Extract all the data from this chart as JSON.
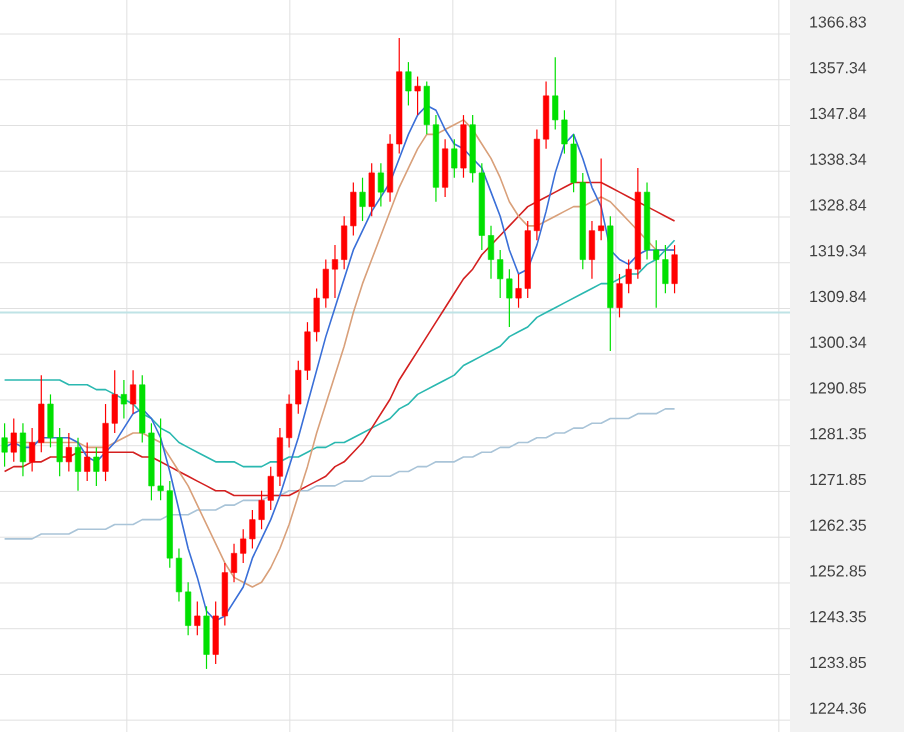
{
  "chart_data": {
    "type": "candlestick",
    "categories": [
      null,
      null,
      null,
      null,
      null,
      null,
      null,
      null,
      null,
      null,
      null,
      null,
      null,
      null,
      null,
      null,
      null,
      null,
      null,
      null,
      null,
      null,
      null,
      null,
      null,
      null,
      null,
      null,
      null,
      null,
      null,
      null,
      null,
      null,
      null,
      null,
      null,
      null,
      null,
      null,
      null,
      null,
      null,
      null,
      null,
      null,
      null,
      null,
      null,
      null,
      null,
      null,
      null,
      null,
      null,
      null,
      null,
      null,
      null,
      null,
      null,
      null,
      null,
      null,
      null,
      null,
      null,
      null,
      null,
      null,
      null,
      null,
      null,
      null
    ],
    "ohlc": [
      [
        1283,
        1286,
        1277,
        1280
      ],
      [
        1280,
        1287,
        1278,
        1284
      ],
      [
        1284,
        1286,
        1275,
        1278
      ],
      [
        1278,
        1285,
        1276,
        1282
      ],
      [
        1282,
        1296,
        1280,
        1290
      ],
      [
        1290,
        1292,
        1281,
        1283
      ],
      [
        1283,
        1285,
        1275,
        1278
      ],
      [
        1278,
        1284,
        1276,
        1281
      ],
      [
        1281,
        1283,
        1272,
        1276
      ],
      [
        1276,
        1282,
        1274,
        1279
      ],
      [
        1279,
        1281,
        1273,
        1276
      ],
      [
        1276,
        1290,
        1274,
        1286
      ],
      [
        1286,
        1297,
        1284,
        1292
      ],
      [
        1292,
        1295,
        1287,
        1290
      ],
      [
        1290,
        1297,
        1288,
        1294
      ],
      [
        1294,
        1296,
        1282,
        1284
      ],
      [
        1284,
        1286,
        1270,
        1273
      ],
      [
        1273,
        1287,
        1270,
        1272
      ],
      [
        1272,
        1274,
        1256,
        1258
      ],
      [
        1258,
        1260,
        1249,
        1251
      ],
      [
        1251,
        1253,
        1242,
        1244
      ],
      [
        1244,
        1249,
        1242,
        1246
      ],
      [
        1246,
        1248,
        1235,
        1238
      ],
      [
        1238,
        1249,
        1236,
        1246
      ],
      [
        1246,
        1257,
        1244,
        1255
      ],
      [
        1255,
        1261,
        1253,
        1259
      ],
      [
        1259,
        1264,
        1257,
        1262
      ],
      [
        1262,
        1268,
        1260,
        1266
      ],
      [
        1266,
        1272,
        1264,
        1270
      ],
      [
        1270,
        1277,
        1268,
        1275
      ],
      [
        1275,
        1285,
        1273,
        1283
      ],
      [
        1283,
        1292,
        1281,
        1290
      ],
      [
        1290,
        1299,
        1288,
        1297
      ],
      [
        1297,
        1307,
        1295,
        1305
      ],
      [
        1305,
        1314,
        1303,
        1312
      ],
      [
        1312,
        1320,
        1310,
        1318
      ],
      [
        1318,
        1323,
        1312,
        1320
      ],
      [
        1320,
        1329,
        1318,
        1327
      ],
      [
        1327,
        1336,
        1325,
        1334
      ],
      [
        1334,
        1337,
        1328,
        1331
      ],
      [
        1331,
        1340,
        1329,
        1338
      ],
      [
        1338,
        1340,
        1331,
        1334
      ],
      [
        1334,
        1346,
        1332,
        1344
      ],
      [
        1344,
        1366,
        1342,
        1359
      ],
      [
        1359,
        1361,
        1352,
        1355
      ],
      [
        1355,
        1358,
        1350,
        1356
      ],
      [
        1356,
        1357,
        1346,
        1348
      ],
      [
        1348,
        1350,
        1332,
        1335
      ],
      [
        1335,
        1345,
        1333,
        1343
      ],
      [
        1343,
        1345,
        1337,
        1339
      ],
      [
        1339,
        1350,
        1337,
        1348
      ],
      [
        1348,
        1350,
        1336,
        1338
      ],
      [
        1338,
        1340,
        1322,
        1325
      ],
      [
        1325,
        1327,
        1316,
        1320
      ],
      [
        1320,
        1322,
        1312,
        1316
      ],
      [
        1316,
        1318,
        1306,
        1312
      ],
      [
        1312,
        1317,
        1310,
        1314
      ],
      [
        1314,
        1328,
        1312,
        1326
      ],
      [
        1326,
        1347,
        1324,
        1345
      ],
      [
        1345,
        1357,
        1343,
        1354
      ],
      [
        1354,
        1362,
        1347,
        1349
      ],
      [
        1349,
        1351,
        1342,
        1344
      ],
      [
        1344,
        1346,
        1334,
        1336
      ],
      [
        1336,
        1338,
        1318,
        1320
      ],
      [
        1320,
        1328,
        1316,
        1326
      ],
      [
        1326,
        1341,
        1324,
        1327
      ],
      [
        1327,
        1329,
        1301,
        1310
      ],
      [
        1310,
        1317,
        1308,
        1315
      ],
      [
        1315,
        1320,
        1313,
        1318
      ],
      [
        1318,
        1339,
        1316,
        1334
      ],
      [
        1334,
        1336,
        1320,
        1322
      ],
      [
        1322,
        1324,
        1310,
        1320
      ],
      [
        1320,
        1323,
        1313,
        1315
      ],
      [
        1315,
        1323,
        1313,
        1321
      ]
    ],
    "colors": [
      "#00e000",
      "#ff0000",
      "#00e000",
      "#ff0000",
      "#ff0000",
      "#00e000",
      "#00e000",
      "#ff0000",
      "#00e000",
      "#ff0000",
      "#00e000",
      "#ff0000",
      "#ff0000",
      "#00e000",
      "#ff0000",
      "#00e000",
      "#00e000",
      "#00e000",
      "#00e000",
      "#00e000",
      "#00e000",
      "#ff0000",
      "#00e000",
      "#ff0000",
      "#ff0000",
      "#ff0000",
      "#ff0000",
      "#ff0000",
      "#ff0000",
      "#ff0000",
      "#ff0000",
      "#ff0000",
      "#ff0000",
      "#ff0000",
      "#ff0000",
      "#ff0000",
      "#ff0000",
      "#ff0000",
      "#ff0000",
      "#00e000",
      "#ff0000",
      "#00e000",
      "#ff0000",
      "#ff0000",
      "#00e000",
      "#ff0000",
      "#00e000",
      "#00e000",
      "#ff0000",
      "#00e000",
      "#ff0000",
      "#00e000",
      "#00e000",
      "#00e000",
      "#00e000",
      "#00e000",
      "#ff0000",
      "#ff0000",
      "#ff0000",
      "#ff0000",
      "#00e000",
      "#00e000",
      "#00e000",
      "#00e000",
      "#ff0000",
      "#ff0000",
      "#00e000",
      "#ff0000",
      "#ff0000",
      "#ff0000",
      "#00e000",
      "#00e000",
      "#00e000",
      "#ff0000"
    ],
    "series": [
      {
        "type": "line",
        "color": "#a9c4d8",
        "values": [
          1262,
          1262,
          1262,
          1262,
          1263,
          1263,
          1263,
          1263,
          1264,
          1264,
          1264,
          1264,
          1265,
          1265,
          1265,
          1266,
          1266,
          1266,
          1267,
          1267,
          1267,
          1268,
          1268,
          1268,
          1269,
          1269,
          1270,
          1270,
          1270,
          1271,
          1271,
          1272,
          1272,
          1272,
          1273,
          1273,
          1273,
          1274,
          1274,
          1274,
          1275,
          1275,
          1275,
          1276,
          1276,
          1277,
          1277,
          1278,
          1278,
          1278,
          1279,
          1279,
          1280,
          1280,
          1281,
          1281,
          1282,
          1282,
          1283,
          1283,
          1284,
          1284,
          1285,
          1285,
          1286,
          1286,
          1287,
          1287,
          1287,
          1288,
          1288,
          1288,
          1289,
          1289
        ]
      },
      {
        "type": "line",
        "color": "#2ab8b0",
        "values": [
          1295,
          1295,
          1295,
          1295,
          1295,
          1295,
          1295,
          1294,
          1294,
          1294,
          1293,
          1293,
          1292,
          1291,
          1290,
          1288,
          1287,
          1285,
          1284,
          1282,
          1281,
          1280,
          1279,
          1278,
          1278,
          1278,
          1277,
          1277,
          1277,
          1278,
          1278,
          1279,
          1279,
          1280,
          1281,
          1281,
          1282,
          1282,
          1283,
          1284,
          1285,
          1286,
          1287,
          1289,
          1290,
          1292,
          1293,
          1294,
          1295,
          1296,
          1298,
          1299,
          1300,
          1301,
          1302,
          1304,
          1305,
          1306,
          1308,
          1309,
          1310,
          1311,
          1312,
          1313,
          1314,
          1315,
          1315,
          1316,
          1317,
          1317,
          1319,
          1320,
          1322,
          1324
        ]
      },
      {
        "type": "line",
        "color": "#d42020",
        "values": [
          1276,
          1277,
          1277,
          1278,
          1278,
          1279,
          1279,
          1279,
          1280,
          1280,
          1280,
          1280,
          1280,
          1280,
          1280,
          1279,
          1279,
          1278,
          1277,
          1276,
          1275,
          1274,
          1273,
          1272,
          1272,
          1271,
          1271,
          1271,
          1271,
          1271,
          1271,
          1271,
          1272,
          1273,
          1274,
          1275,
          1277,
          1278,
          1280,
          1282,
          1285,
          1288,
          1291,
          1295,
          1298,
          1301,
          1304,
          1307,
          1310,
          1313,
          1316,
          1318,
          1321,
          1323,
          1325,
          1327,
          1329,
          1331,
          1332,
          1333,
          1334,
          1335,
          1336,
          1336,
          1336,
          1336,
          1335,
          1334,
          1333,
          1332,
          1331,
          1330,
          1329,
          1328
        ]
      },
      {
        "type": "line",
        "color": "#d9a07a",
        "values": [
          1282,
          1282,
          1282,
          1282,
          1282,
          1282,
          1282,
          1282,
          1282,
          1281,
          1281,
          1281,
          1282,
          1283,
          1284,
          1284,
          1283,
          1282,
          1279,
          1276,
          1273,
          1269,
          1265,
          1261,
          1257,
          1254,
          1253,
          1252,
          1253,
          1256,
          1260,
          1265,
          1271,
          1277,
          1284,
          1290,
          1296,
          1302,
          1309,
          1315,
          1320,
          1325,
          1330,
          1335,
          1339,
          1343,
          1346,
          1346,
          1347,
          1348,
          1349,
          1347,
          1344,
          1341,
          1337,
          1332,
          1329,
          1327,
          1327,
          1328,
          1329,
          1330,
          1331,
          1331,
          1332,
          1333,
          1332,
          1330,
          1328,
          1326,
          1324,
          1322,
          1322,
          1322
        ]
      },
      {
        "type": "line",
        "color": "#3a6fd8",
        "values": [
          1281,
          1282,
          1281,
          1281,
          1283,
          1283,
          1283,
          1283,
          1282,
          1279,
          1278,
          1280,
          1282,
          1285,
          1288,
          1289,
          1287,
          1283,
          1276,
          1268,
          1260,
          1254,
          1247,
          1245,
          1246,
          1249,
          1252,
          1258,
          1262,
          1266,
          1271,
          1277,
          1283,
          1290,
          1297,
          1304,
          1310,
          1316,
          1322,
          1326,
          1330,
          1333,
          1336,
          1341,
          1346,
          1350,
          1352,
          1351,
          1347,
          1344,
          1343,
          1341,
          1339,
          1334,
          1329,
          1322,
          1317,
          1318,
          1323,
          1330,
          1338,
          1344,
          1346,
          1341,
          1335,
          1331,
          1322,
          1320,
          1319,
          1321,
          1322,
          1322,
          1322,
          1322
        ]
      }
    ],
    "ref_lines": [
      {
        "axis": "y",
        "value": 1309,
        "color": "#bfe3e6"
      }
    ],
    "ylim": [
      1221.9,
      1373.9
    ],
    "yticks": [
      1366.83,
      1357.34,
      1347.84,
      1338.34,
      1328.84,
      1319.34,
      1309.84,
      1300.34,
      1290.85,
      1281.35,
      1271.85,
      1262.35,
      1252.85,
      1243.35,
      1233.85,
      1224.36
    ],
    "grid": true,
    "tick_labels": "y"
  }
}
